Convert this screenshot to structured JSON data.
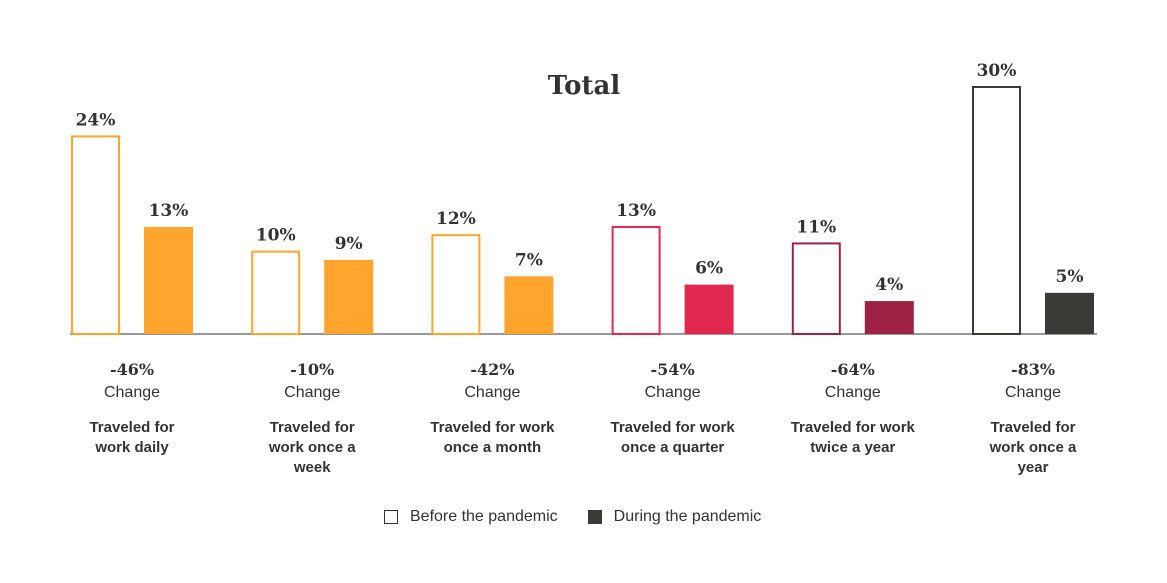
{
  "chart_data": {
    "type": "bar",
    "title": "Total",
    "categories": [
      "Traveled for work daily",
      "Traveled for work once a week",
      "Traveled for work once a month",
      "Traveled for work once a quarter",
      "Traveled for work twice a year",
      "Traveled for work once a year"
    ],
    "category_lines": [
      [
        "Traveled for",
        "work daily"
      ],
      [
        "Traveled for",
        "work once a",
        "week"
      ],
      [
        "Traveled for work",
        "once a month"
      ],
      [
        "Traveled for work",
        "once a quarter"
      ],
      [
        "Traveled for work",
        "twice a year"
      ],
      [
        "Traveled for",
        "work once a",
        "year"
      ]
    ],
    "series": [
      {
        "name": "Before the pandemic",
        "values": [
          24,
          10,
          12,
          13,
          11,
          30
        ],
        "labels": [
          "24%",
          "10%",
          "12%",
          "13%",
          "11%",
          "30%"
        ]
      },
      {
        "name": "During the pandemic",
        "values": [
          13,
          9,
          7,
          6,
          4,
          5
        ],
        "labels": [
          "13%",
          "9%",
          "7%",
          "6%",
          "4%",
          "5%"
        ]
      }
    ],
    "changes": [
      "-46%",
      "-10%",
      "-42%",
      "-54%",
      "-64%",
      "-83%"
    ],
    "change_label": "Change",
    "colors": [
      "#ffa52d",
      "#ffa52d",
      "#ffa52d",
      "#e3284f",
      "#9e2244",
      "#3a3a36"
    ],
    "ylim": [
      0,
      30
    ],
    "legend": "bottom-center",
    "grid": false
  }
}
